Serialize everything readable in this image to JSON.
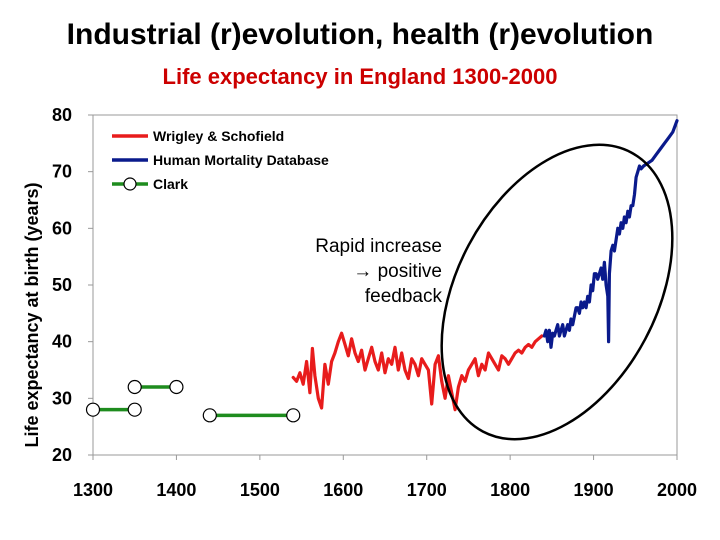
{
  "header": {
    "title": "Industrial (r)evolution, health (r)evolution"
  },
  "colors": {
    "subtitle": "#cc0000",
    "wrigley": "#e81c1c",
    "hmd": "#0a1a8c",
    "clark": "#1e8c1e"
  },
  "chart_data": {
    "type": "line",
    "title": "Life expectancy in England 1300-2000",
    "xlabel": "",
    "ylabel": "Life expectancy at birth (years)",
    "xlim": [
      1300,
      2000
    ],
    "ylim": [
      20,
      80
    ],
    "xticks": [
      1300,
      1400,
      1500,
      1600,
      1700,
      1800,
      1900,
      2000
    ],
    "yticks": [
      20,
      30,
      40,
      50,
      60,
      70,
      80
    ],
    "legend_position": "top-left",
    "series": [
      {
        "name": "Wrigley & Schofield",
        "color_key": "wrigley",
        "style": "line",
        "x": [
          1540,
          1544,
          1548,
          1552,
          1556,
          1560,
          1563,
          1566,
          1570,
          1574,
          1578,
          1582,
          1586,
          1590,
          1594,
          1598,
          1602,
          1606,
          1610,
          1614,
          1618,
          1622,
          1626,
          1630,
          1634,
          1638,
          1642,
          1646,
          1650,
          1654,
          1658,
          1662,
          1666,
          1670,
          1674,
          1678,
          1682,
          1686,
          1690,
          1694,
          1698,
          1702,
          1706,
          1710,
          1714,
          1718,
          1722,
          1726,
          1730,
          1734,
          1738,
          1742,
          1746,
          1750,
          1754,
          1758,
          1762,
          1766,
          1770,
          1774,
          1778,
          1782,
          1786,
          1790,
          1794,
          1798,
          1802,
          1806,
          1810,
          1814,
          1818,
          1822,
          1826,
          1830,
          1834,
          1838
        ],
        "values": [
          33.7,
          33,
          34.5,
          32.5,
          36.5,
          31,
          38.8,
          34,
          30,
          28.3,
          36,
          32.5,
          36.5,
          38,
          40,
          41.5,
          39.5,
          37.5,
          40.5,
          38,
          36.5,
          38.5,
          35,
          37,
          39,
          36.5,
          35,
          38,
          34.5,
          37,
          36,
          39,
          35,
          38,
          35,
          33.5,
          37,
          36,
          34,
          37,
          36,
          35,
          29,
          36,
          37.5,
          33,
          30,
          34,
          31,
          28,
          32,
          34,
          33,
          35,
          36,
          37,
          34,
          36,
          35,
          38,
          37,
          36,
          35,
          37.5,
          37,
          36,
          37,
          38,
          38.5,
          38,
          39,
          39.5,
          39,
          40,
          40.5,
          41
        ]
      },
      {
        "name": "Human Mortality Database",
        "color_key": "hmd",
        "style": "line",
        "x": [
          1841,
          1843,
          1845,
          1847,
          1849,
          1851,
          1853,
          1855,
          1857,
          1859,
          1861,
          1863,
          1865,
          1867,
          1869,
          1871,
          1873,
          1875,
          1877,
          1879,
          1881,
          1883,
          1885,
          1887,
          1889,
          1891,
          1893,
          1895,
          1897,
          1899,
          1901,
          1903,
          1905,
          1907,
          1909,
          1911,
          1913,
          1915,
          1917,
          1918,
          1919,
          1921,
          1923,
          1925,
          1927,
          1929,
          1931,
          1933,
          1935,
          1937,
          1939,
          1941,
          1943,
          1945,
          1947,
          1949,
          1951,
          1953,
          1955,
          1957,
          1960,
          1965,
          1970,
          1975,
          1980,
          1985,
          1990,
          1995,
          2000
        ],
        "values": [
          41,
          42,
          40,
          42,
          39,
          41.5,
          41,
          42,
          43,
          41,
          42,
          43,
          41,
          42,
          43,
          42,
          44,
          43,
          44.5,
          46,
          46,
          45,
          47,
          46,
          47,
          46,
          48,
          47,
          50,
          49,
          52,
          52,
          51,
          52,
          53,
          51,
          54,
          50,
          48,
          40,
          52,
          56,
          57,
          56,
          58,
          60,
          59,
          61,
          60,
          62,
          61,
          63,
          62,
          64,
          64,
          66,
          69,
          70,
          71,
          70.5,
          71,
          71.5,
          72,
          73,
          74,
          75,
          76,
          77,
          79
        ]
      },
      {
        "name": "Clark",
        "color_key": "clark",
        "style": "segments",
        "segments": [
          {
            "x": [
              1300,
              1350
            ],
            "y": [
              28,
              28
            ]
          },
          {
            "x": [
              1350,
              1400
            ],
            "y": [
              32,
              32
            ]
          },
          {
            "x": [
              1440,
              1540
            ],
            "y": [
              27,
              27
            ]
          }
        ]
      }
    ],
    "annotations": [
      {
        "lines": [
          "Rapid increase",
          "→ positive",
          "feedback"
        ],
        "shape": "ellipse-around-rise"
      }
    ]
  }
}
